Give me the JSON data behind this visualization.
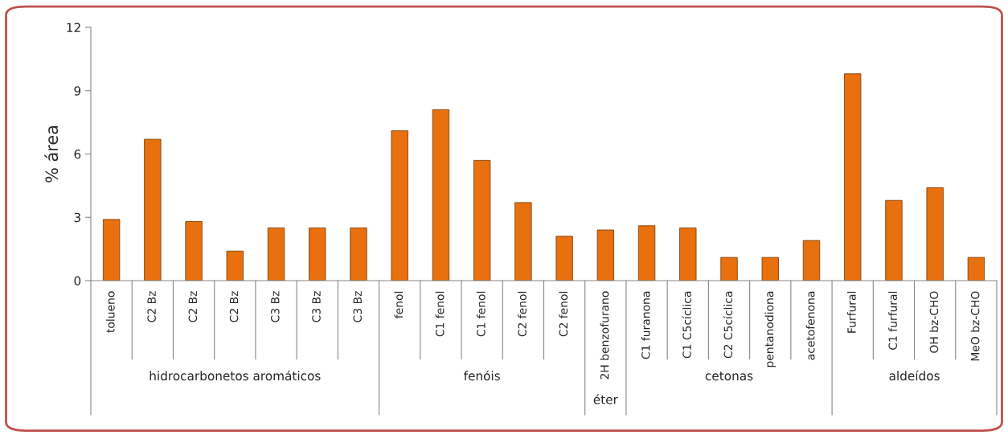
{
  "chart_data": {
    "type": "bar",
    "ylabel": "% área",
    "categories": [
      "tolueno",
      "C2 Bz",
      "C2 Bz",
      "C2 Bz",
      "C3 Bz",
      "C3 Bz",
      "C3 Bz",
      "fenol",
      "C1 fenol",
      "C1 fenol",
      "C2 fenol",
      "C2 fenol",
      "2H benzofurano",
      "C1 furanona",
      "C1 C5cíclica",
      "C2 C5cíclica",
      "pentanodiona",
      "acetofenona",
      "Furfural",
      "C1 furfural",
      "OH bz-CHO",
      "MeO bz-CHO"
    ],
    "values": [
      2.9,
      6.7,
      2.8,
      1.4,
      2.5,
      2.5,
      2.5,
      7.1,
      8.1,
      5.7,
      3.7,
      2.1,
      2.4,
      2.6,
      2.5,
      1.1,
      1.1,
      1.9,
      9.8,
      3.8,
      4.4,
      1.1
    ],
    "color": "#e8700e",
    "ylim": [
      0,
      12
    ],
    "yticks": [
      0,
      3,
      6,
      9,
      12
    ],
    "grid": false,
    "annotations": [
      "hidrocarbonetos aromáticos",
      "fenóis",
      "éter",
      "cetonas",
      "aldeídos"
    ]
  }
}
